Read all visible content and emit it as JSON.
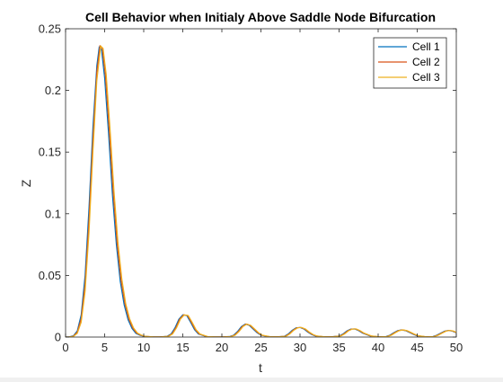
{
  "chart_data": {
    "type": "line",
    "title": "Cell Behavior when Initialy Above Saddle Node Bifurcation",
    "xlabel": "t",
    "ylabel": "Z",
    "xlim": [
      0,
      50
    ],
    "ylim": [
      0,
      0.25
    ],
    "xticks": [
      0,
      5,
      10,
      15,
      20,
      25,
      30,
      35,
      40,
      45,
      50
    ],
    "yticks": [
      0,
      0.05,
      0.1,
      0.15,
      0.2,
      0.25
    ],
    "xtick_labels": [
      "0",
      "5",
      "10",
      "15",
      "20",
      "25",
      "30",
      "35",
      "40",
      "45",
      "50"
    ],
    "ytick_labels": [
      "0",
      "0.05",
      "0.1",
      "0.15",
      "0.2",
      "0.25"
    ],
    "grid": false,
    "legend_position": "top-right",
    "series": [
      {
        "name": "Cell 1",
        "color": "#0072BD",
        "x": [
          0,
          0.5,
          1,
          1.5,
          2,
          2.5,
          3,
          3.5,
          4,
          4.3,
          4.6,
          5,
          5.5,
          6,
          6.5,
          7,
          7.5,
          8,
          8.5,
          9,
          9.5,
          10,
          11,
          12,
          13,
          13.5,
          14,
          14.5,
          15,
          15.5,
          16,
          16.5,
          17,
          18,
          19,
          20,
          21,
          21.5,
          22,
          22.5,
          23,
          23.5,
          24,
          24.5,
          25,
          26,
          27,
          28,
          28.5,
          29,
          29.5,
          30,
          30.5,
          31,
          31.5,
          32,
          33,
          34,
          35,
          35.5,
          36,
          36.5,
          37,
          37.5,
          38,
          39,
          40,
          41,
          41.5,
          42,
          42.5,
          43,
          43.5,
          44,
          44.5,
          45,
          46,
          47,
          47.5,
          48,
          48.5,
          49,
          49.5,
          50
        ],
        "y": [
          0,
          0.0002,
          0.001,
          0.005,
          0.018,
          0.05,
          0.105,
          0.17,
          0.22,
          0.235,
          0.233,
          0.21,
          0.165,
          0.115,
          0.075,
          0.045,
          0.026,
          0.014,
          0.007,
          0.003,
          0.0015,
          0.0006,
          0.0002,
          0.0001,
          0.0006,
          0.0025,
          0.0075,
          0.0145,
          0.018,
          0.0175,
          0.012,
          0.006,
          0.0025,
          0.0004,
          0.0001,
          0.0001,
          0.0004,
          0.0015,
          0.0045,
          0.0085,
          0.0105,
          0.0095,
          0.0065,
          0.0035,
          0.0015,
          0.0003,
          0.0002,
          0.0006,
          0.0025,
          0.0055,
          0.0075,
          0.0078,
          0.0065,
          0.004,
          0.002,
          0.0008,
          0.0002,
          0.0002,
          0.0008,
          0.0025,
          0.005,
          0.0065,
          0.0066,
          0.0052,
          0.0032,
          0.0008,
          0.0002,
          0.0004,
          0.0015,
          0.0035,
          0.0052,
          0.0058,
          0.0052,
          0.0038,
          0.0022,
          0.001,
          0.0002,
          0.0004,
          0.0015,
          0.0032,
          0.0048,
          0.0054,
          0.0048,
          0.0035
        ]
      },
      {
        "name": "Cell 2",
        "color": "#D95319",
        "x": [
          0,
          0.5,
          1,
          1.5,
          2,
          2.5,
          3,
          3.5,
          4,
          4.4,
          4.7,
          5.1,
          5.6,
          6.1,
          6.6,
          7.1,
          7.6,
          8.1,
          8.6,
          9.1,
          9.6,
          10.1,
          11.1,
          12.1,
          13.1,
          13.6,
          14.1,
          14.6,
          15.1,
          15.6,
          16.1,
          16.6,
          17.1,
          18.1,
          19.1,
          20.1,
          21.1,
          21.6,
          22.1,
          22.6,
          23.1,
          23.6,
          24.1,
          24.6,
          25.1,
          26.1,
          27.1,
          28.1,
          28.6,
          29.1,
          29.6,
          30.1,
          30.6,
          31.1,
          31.6,
          32.1,
          33.1,
          34.1,
          35.1,
          35.6,
          36.1,
          36.6,
          37.1,
          37.6,
          38.1,
          39.1,
          40.1,
          41.1,
          41.6,
          42.1,
          42.6,
          43.1,
          43.6,
          44.1,
          44.6,
          45.1,
          46.1,
          47.1,
          47.6,
          48.1,
          48.6,
          49.1,
          49.6,
          50
        ],
        "y": [
          0,
          0.0001,
          0.0007,
          0.004,
          0.015,
          0.043,
          0.095,
          0.16,
          0.215,
          0.236,
          0.234,
          0.212,
          0.167,
          0.117,
          0.076,
          0.046,
          0.027,
          0.0145,
          0.0072,
          0.0032,
          0.0016,
          0.0006,
          0.0002,
          0.0001,
          0.0006,
          0.0025,
          0.0075,
          0.0145,
          0.018,
          0.0175,
          0.012,
          0.006,
          0.0025,
          0.0004,
          0.0001,
          0.0001,
          0.0004,
          0.0015,
          0.0045,
          0.0085,
          0.0105,
          0.0095,
          0.0065,
          0.0035,
          0.0015,
          0.0003,
          0.0002,
          0.0006,
          0.0025,
          0.0055,
          0.0075,
          0.0078,
          0.0065,
          0.004,
          0.002,
          0.0008,
          0.0002,
          0.0002,
          0.0008,
          0.0025,
          0.005,
          0.0065,
          0.0066,
          0.0052,
          0.0032,
          0.0008,
          0.0002,
          0.0004,
          0.0015,
          0.0035,
          0.0052,
          0.0058,
          0.0052,
          0.0038,
          0.0022,
          0.001,
          0.0002,
          0.0004,
          0.0015,
          0.0032,
          0.0048,
          0.0054,
          0.0048,
          0.0036
        ]
      },
      {
        "name": "Cell 3",
        "color": "#EDB120",
        "x": [
          0,
          0.5,
          1,
          1.5,
          2,
          2.5,
          3,
          3.5,
          4,
          4.5,
          4.8,
          5.2,
          5.7,
          6.2,
          6.7,
          7.2,
          7.7,
          8.2,
          8.7,
          9.2,
          9.7,
          10.2,
          11.2,
          12.2,
          13.2,
          13.7,
          14.2,
          14.7,
          15.2,
          15.7,
          16.2,
          16.7,
          17.2,
          18.2,
          19.2,
          20.2,
          21.2,
          21.7,
          22.2,
          22.7,
          23.2,
          23.7,
          24.2,
          24.7,
          25.2,
          26.2,
          27.2,
          28.2,
          28.7,
          29.2,
          29.7,
          30.2,
          30.7,
          31.2,
          31.7,
          32.2,
          33.2,
          34.2,
          35.2,
          35.7,
          36.2,
          36.7,
          37.2,
          37.7,
          38.2,
          39.2,
          40.2,
          41.2,
          41.7,
          42.2,
          42.7,
          43.2,
          43.7,
          44.2,
          44.7,
          45.2,
          46.2,
          47.2,
          47.7,
          48.2,
          48.7,
          49.2,
          49.7,
          50
        ],
        "y": [
          0,
          0.0001,
          0.0005,
          0.003,
          0.012,
          0.037,
          0.085,
          0.15,
          0.208,
          0.236,
          0.234,
          0.213,
          0.168,
          0.118,
          0.077,
          0.047,
          0.027,
          0.0148,
          0.0074,
          0.0033,
          0.0016,
          0.0006,
          0.0002,
          0.0001,
          0.0006,
          0.0025,
          0.0075,
          0.0145,
          0.018,
          0.0175,
          0.012,
          0.006,
          0.0025,
          0.0004,
          0.0001,
          0.0001,
          0.0004,
          0.0015,
          0.0045,
          0.0085,
          0.0105,
          0.0095,
          0.0065,
          0.0035,
          0.0015,
          0.0003,
          0.0002,
          0.0006,
          0.0025,
          0.0055,
          0.0075,
          0.0078,
          0.0065,
          0.004,
          0.002,
          0.0008,
          0.0002,
          0.0002,
          0.0008,
          0.0025,
          0.005,
          0.0065,
          0.0066,
          0.0052,
          0.0032,
          0.0008,
          0.0002,
          0.0004,
          0.0015,
          0.0035,
          0.0052,
          0.0058,
          0.0052,
          0.0038,
          0.0022,
          0.001,
          0.0002,
          0.0004,
          0.0015,
          0.0032,
          0.0048,
          0.0054,
          0.0048,
          0.0037
        ]
      }
    ]
  }
}
